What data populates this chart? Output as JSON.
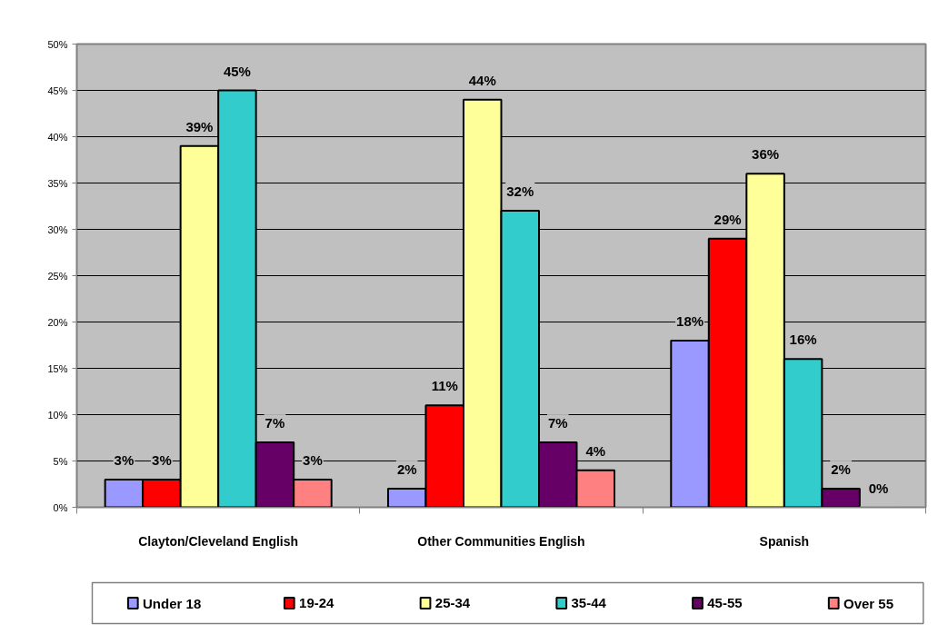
{
  "chart_data": {
    "type": "bar",
    "categories": [
      "Clayton/Cleveland English",
      "Other Communities English",
      "Spanish"
    ],
    "series": [
      {
        "name": "Under 18",
        "color": "#9999ff",
        "values": [
          3,
          2,
          18
        ],
        "value_labels": [
          "3%",
          "2%",
          "18%"
        ]
      },
      {
        "name": "19-24",
        "color": "#ff0000",
        "values": [
          3,
          11,
          29
        ],
        "value_labels": [
          "3%",
          "11%",
          "29%"
        ]
      },
      {
        "name": "25-34",
        "color": "#ffff99",
        "values": [
          39,
          44,
          36
        ],
        "value_labels": [
          "39%",
          "44%",
          "36%"
        ]
      },
      {
        "name": "35-44",
        "color": "#33cccc",
        "values": [
          45,
          32,
          16
        ],
        "value_labels": [
          "45%",
          "32%",
          "16%"
        ]
      },
      {
        "name": "45-55",
        "color": "#660066",
        "values": [
          7,
          7,
          2
        ],
        "value_labels": [
          "7%",
          "7%",
          "2%"
        ]
      },
      {
        "name": "Over 55",
        "color": "#ff8080",
        "values": [
          3,
          4,
          0
        ],
        "value_labels": [
          "3%",
          "4%",
          "0%"
        ]
      }
    ],
    "ylim": [
      0,
      50
    ],
    "yticks": [
      {
        "value": 0,
        "label": "0%"
      },
      {
        "value": 5,
        "label": "5%"
      },
      {
        "value": 10,
        "label": "10%"
      },
      {
        "value": 15,
        "label": "15%"
      },
      {
        "value": 20,
        "label": "20%"
      },
      {
        "value": 25,
        "label": "25%"
      },
      {
        "value": 30,
        "label": "30%"
      },
      {
        "value": 35,
        "label": "35%"
      },
      {
        "value": 40,
        "label": "40%"
      },
      {
        "value": 45,
        "label": "45%"
      },
      {
        "value": 50,
        "label": "50%"
      }
    ],
    "grid": "y",
    "legend": "bottom"
  }
}
